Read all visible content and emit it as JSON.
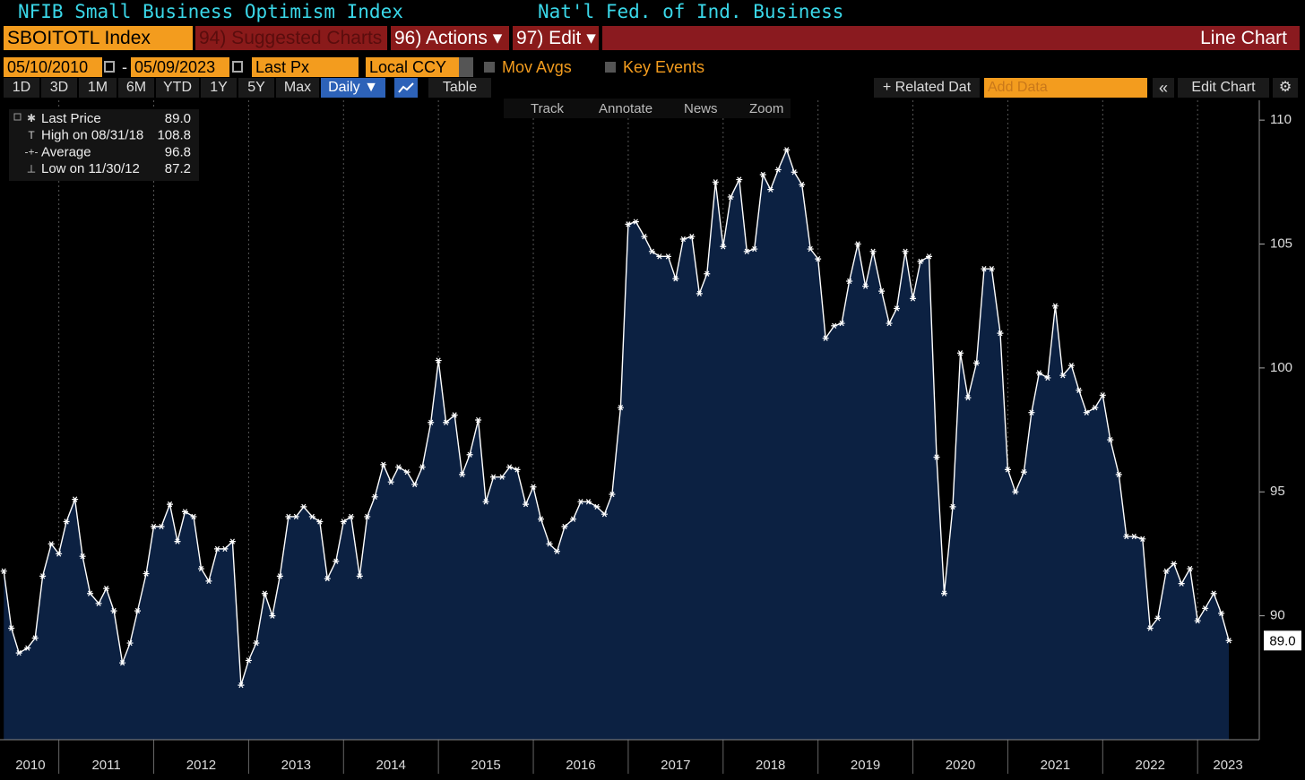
{
  "header": {
    "title": "NFIB Small Business Optimism Index",
    "source": "Nat'l Fed. of Ind. Business"
  },
  "toolbar": {
    "ticker": "SBOITOTL Index",
    "suggested": "94) Suggested Charts",
    "actions": "96) Actions ▾",
    "edit": "97) Edit ▾",
    "chart_kind": "Line Chart",
    "start_date": "05/10/2010",
    "date_separator": "-",
    "end_date": "05/09/2023",
    "field": "Last Px",
    "currency": "Local CCY",
    "mov_avgs": "Mov Avgs",
    "key_events": "Key Events",
    "periods": [
      "1D",
      "3D",
      "1M",
      "6M",
      "YTD",
      "1Y",
      "5Y",
      "Max"
    ],
    "frequency": "Daily ▼",
    "table": "Table",
    "related": "+ Related Dat",
    "add_data": "Add Data",
    "edit_chart": "Edit Chart",
    "tools": [
      "Track",
      "Annotate",
      "News",
      "Zoom"
    ]
  },
  "chart_data": {
    "type": "line",
    "legend": [
      {
        "label": "Last Price",
        "value": "89.0"
      },
      {
        "label": "High on 08/31/18",
        "value": "108.8"
      },
      {
        "label": "Average",
        "value": "96.8"
      },
      {
        "label": "Low on 11/30/12",
        "value": "87.2"
      }
    ],
    "last_value_label": "89.0",
    "x": [
      2010.42,
      2010.5,
      2010.58,
      2010.67,
      2010.75,
      2010.83,
      2010.92,
      2011.0,
      2011.08,
      2011.17,
      2011.25,
      2011.33,
      2011.42,
      2011.5,
      2011.58,
      2011.67,
      2011.75,
      2011.83,
      2011.92,
      2012.0,
      2012.08,
      2012.17,
      2012.25,
      2012.33,
      2012.42,
      2012.5,
      2012.58,
      2012.67,
      2012.75,
      2012.83,
      2012.92,
      2013.0,
      2013.08,
      2013.17,
      2013.25,
      2013.33,
      2013.42,
      2013.5,
      2013.58,
      2013.67,
      2013.75,
      2013.83,
      2013.92,
      2014.0,
      2014.08,
      2014.17,
      2014.25,
      2014.33,
      2014.42,
      2014.5,
      2014.58,
      2014.67,
      2014.75,
      2014.83,
      2014.92,
      2015.0,
      2015.08,
      2015.17,
      2015.25,
      2015.33,
      2015.42,
      2015.5,
      2015.58,
      2015.67,
      2015.75,
      2015.83,
      2015.92,
      2016.0,
      2016.08,
      2016.17,
      2016.25,
      2016.33,
      2016.42,
      2016.5,
      2016.58,
      2016.67,
      2016.75,
      2016.83,
      2016.92,
      2017.0,
      2017.08,
      2017.17,
      2017.25,
      2017.33,
      2017.42,
      2017.5,
      2017.58,
      2017.67,
      2017.75,
      2017.83,
      2017.92,
      2018.0,
      2018.08,
      2018.17,
      2018.25,
      2018.33,
      2018.42,
      2018.5,
      2018.58,
      2018.67,
      2018.75,
      2018.83,
      2018.92,
      2019.0,
      2019.08,
      2019.17,
      2019.25,
      2019.33,
      2019.42,
      2019.5,
      2019.58,
      2019.67,
      2019.75,
      2019.83,
      2019.92,
      2020.0,
      2020.08,
      2020.17,
      2020.25,
      2020.33,
      2020.42,
      2020.5,
      2020.58,
      2020.67,
      2020.75,
      2020.83,
      2020.92,
      2021.0,
      2021.08,
      2021.17,
      2021.25,
      2021.33,
      2021.42,
      2021.5,
      2021.58,
      2021.67,
      2021.75,
      2021.83,
      2021.92,
      2022.0,
      2022.08,
      2022.17,
      2022.25,
      2022.33,
      2022.42,
      2022.5,
      2022.58,
      2022.67,
      2022.75,
      2022.83,
      2022.92,
      2023.0,
      2023.08,
      2023.17,
      2023.25,
      2023.33
    ],
    "series": [
      {
        "name": "SBOITOTL Index",
        "color": "#ffffff",
        "fill": "#0c2142",
        "values": [
          91.8,
          89.5,
          88.5,
          88.7,
          89.1,
          91.6,
          92.9,
          92.5,
          93.8,
          94.7,
          92.4,
          90.9,
          90.5,
          91.1,
          90.2,
          88.1,
          88.9,
          90.2,
          91.7,
          93.6,
          93.6,
          94.5,
          93.0,
          94.2,
          94.0,
          91.9,
          91.4,
          92.7,
          92.7,
          93.0,
          87.2,
          88.2,
          88.9,
          90.9,
          90.0,
          91.6,
          94.0,
          94.0,
          94.4,
          94.0,
          93.8,
          91.5,
          92.2,
          93.8,
          94.0,
          91.6,
          94.0,
          94.8,
          96.1,
          95.4,
          96.0,
          95.8,
          95.3,
          96.0,
          97.8,
          100.3,
          97.8,
          98.1,
          95.7,
          96.5,
          97.9,
          94.6,
          95.6,
          95.6,
          96.0,
          95.9,
          94.5,
          95.2,
          93.9,
          92.9,
          92.6,
          93.6,
          93.9,
          94.6,
          94.6,
          94.4,
          94.1,
          94.9,
          98.4,
          105.8,
          105.9,
          105.3,
          104.7,
          104.5,
          104.5,
          103.6,
          105.2,
          105.3,
          103.0,
          103.8,
          107.5,
          104.9,
          106.9,
          107.6,
          104.7,
          104.8,
          107.8,
          107.2,
          108.0,
          108.8,
          107.9,
          107.4,
          104.8,
          104.4,
          101.2,
          101.7,
          101.8,
          103.5,
          105.0,
          103.3,
          104.7,
          103.1,
          101.8,
          102.4,
          104.7,
          102.8,
          104.3,
          104.5,
          96.4,
          90.9,
          94.4,
          100.6,
          98.8,
          100.2,
          104.0,
          104.0,
          101.4,
          95.9,
          95.0,
          95.8,
          98.2,
          99.8,
          99.6,
          102.5,
          99.7,
          100.1,
          99.1,
          98.2,
          98.4,
          98.9,
          97.1,
          95.7,
          93.2,
          93.2,
          93.1,
          89.5,
          89.9,
          91.8,
          92.1,
          91.3,
          91.9,
          89.8,
          90.3,
          90.9,
          90.1,
          89.0
        ]
      }
    ],
    "xlim": [
      2010.38,
      2023.65
    ],
    "xticks": [
      {
        "value": 2010.7,
        "label": "2010"
      },
      {
        "value": 2011.5,
        "label": "2011"
      },
      {
        "value": 2012.5,
        "label": "2012"
      },
      {
        "value": 2013.5,
        "label": "2013"
      },
      {
        "value": 2014.5,
        "label": "2014"
      },
      {
        "value": 2015.5,
        "label": "2015"
      },
      {
        "value": 2016.5,
        "label": "2016"
      },
      {
        "value": 2017.5,
        "label": "2017"
      },
      {
        "value": 2018.5,
        "label": "2018"
      },
      {
        "value": 2019.5,
        "label": "2019"
      },
      {
        "value": 2020.5,
        "label": "2020"
      },
      {
        "value": 2021.5,
        "label": "2021"
      },
      {
        "value": 2022.5,
        "label": "2022"
      },
      {
        "value": 2023.32,
        "label": "2023"
      }
    ],
    "xgrid": [
      2011,
      2012,
      2013,
      2014,
      2015,
      2016,
      2017,
      2018,
      2019,
      2020,
      2021,
      2022,
      2023
    ],
    "ylim": [
      85,
      110.8
    ],
    "yticks": [
      90,
      95,
      100,
      105,
      110
    ],
    "grid": true,
    "markers": true,
    "legend_position": "upper left"
  }
}
